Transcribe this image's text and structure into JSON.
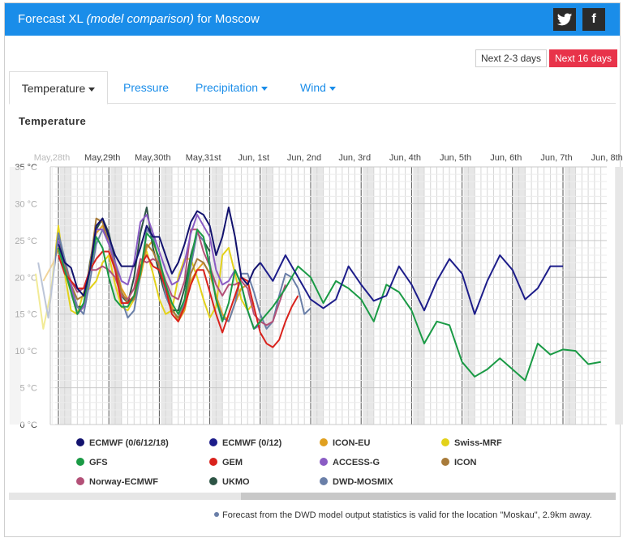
{
  "header": {
    "title_main": "Forecast XL",
    "title_em": "(model comparison)",
    "title_tail": "for Moscow",
    "twitter_glyph": "🐦",
    "facebook_glyph": "f",
    "bg_color": "#1a8de9"
  },
  "range_buttons": [
    {
      "label": "Next 2-3 days",
      "active": false
    },
    {
      "label": "Next 16 days",
      "active": true,
      "color": "#e8334a"
    }
  ],
  "tabs": [
    {
      "label": "Temperature",
      "active": true,
      "dropdown": true
    },
    {
      "label": "Pressure",
      "active": false,
      "dropdown": false
    },
    {
      "label": "Precipitation",
      "active": false,
      "dropdown": true
    },
    {
      "label": "Wind",
      "active": false,
      "dropdown": true
    }
  ],
  "section_title": "Temperature",
  "chart_data": {
    "type": "line",
    "title": "Temperature",
    "y_ticks": [
      "0 °C",
      "5 °C",
      "10 °C",
      "15 °C",
      "20 °C",
      "25 °C",
      "30 °C",
      "35 °C"
    ],
    "ylim": [
      0,
      35
    ],
    "x_day_labels": [
      "May,28th",
      "May,29th",
      "May,30th",
      "May,31st",
      "Jun, 1st",
      "Jun, 2nd",
      "Jun, 3rd",
      "Jun, 4th",
      "Jun, 5th",
      "Jun, 6th",
      "Jun, 7th",
      "Jun, 8th"
    ],
    "grid": true,
    "series": [
      {
        "name": "ECMWF (0/6/12/18)",
        "color": "#12126e",
        "x": [
          0.0,
          0.125,
          0.25,
          0.375,
          0.5,
          0.625,
          0.75,
          0.875,
          1.0,
          1.125,
          1.25,
          1.375,
          1.5,
          1.625,
          1.75,
          1.875,
          2.0,
          2.125,
          2.25,
          2.375,
          2.5,
          2.625,
          2.75,
          2.875,
          3.0,
          3.125,
          3.25,
          3.375,
          3.5,
          3.625,
          3.75,
          3.875,
          4.0
        ],
        "y": [
          24.5,
          22.0,
          21.3,
          18.5,
          17.5,
          21.0,
          27.0,
          28.0,
          25.5,
          23.0,
          21.5,
          21.5,
          21.5,
          24.0,
          27.0,
          25.5,
          25.5,
          23.0,
          20.5,
          22.0,
          24.5,
          27.5,
          29.0,
          28.5,
          27.0,
          23.0,
          25.5,
          29.5,
          25.5,
          20.0,
          19.0,
          21.0,
          22.0
        ]
      },
      {
        "name": "ECMWF (0/12)",
        "color": "#1d1d8a",
        "x": [
          4.0,
          4.25,
          4.5,
          4.75,
          5.0,
          5.25,
          5.5,
          5.75,
          6.0,
          6.25,
          6.5,
          6.75,
          7.0,
          7.25,
          7.5,
          7.75,
          8.0,
          8.25,
          8.5,
          8.75,
          9.0,
          9.25,
          9.5,
          9.75,
          10.0
        ],
        "y": [
          22.0,
          19.5,
          23.0,
          20.0,
          17.0,
          15.8,
          17.0,
          21.5,
          19.0,
          16.8,
          17.5,
          21.5,
          19.0,
          15.5,
          19.5,
          22.5,
          20.5,
          15.0,
          19.5,
          23.0,
          21.0,
          17.0,
          18.5,
          21.5,
          21.5
        ]
      },
      {
        "name": "ICON-EU",
        "color": "#e0a020",
        "x": [
          -0.3,
          -0.1,
          0.0,
          0.125,
          0.25,
          0.375,
          0.5,
          0.625,
          0.75,
          0.875,
          1.0,
          1.125,
          1.25,
          1.375,
          1.5,
          1.625,
          1.75,
          1.875,
          2.0,
          2.125,
          2.25,
          2.375,
          2.5,
          2.625,
          2.75,
          2.875,
          3.0,
          3.125,
          3.25,
          3.375,
          3.5,
          3.625,
          3.75
        ],
        "y": [
          19.5,
          22.0,
          24.0,
          21.0,
          18.0,
          15.0,
          16.0,
          21.0,
          26.0,
          27.0,
          25.0,
          21.5,
          18.5,
          17.0,
          17.0,
          20.0,
          24.0,
          25.0,
          22.0,
          18.5,
          16.0,
          14.0,
          15.5,
          19.5,
          21.0,
          22.0,
          20.5,
          17.5,
          15.0,
          14.0,
          16.5,
          18.5,
          19.0
        ]
      },
      {
        "name": "Swiss-MRF",
        "color": "#e3d21a",
        "x": [
          -0.45,
          -0.3,
          -0.15,
          0.0,
          0.125,
          0.25,
          0.375,
          0.5,
          0.625,
          0.75,
          0.875,
          1.0,
          1.125,
          1.25,
          1.375,
          1.5,
          1.625,
          1.75,
          1.875,
          2.0,
          2.125,
          2.25,
          2.375,
          2.5,
          2.625,
          2.75,
          2.875,
          3.0,
          3.125,
          3.25,
          3.375,
          3.5,
          3.625,
          3.75,
          3.875
        ],
        "y": [
          20.5,
          13.0,
          18.0,
          27.0,
          20.5,
          15.5,
          15.0,
          18.0,
          18.5,
          19.5,
          22.0,
          23.0,
          19.0,
          16.0,
          15.5,
          17.0,
          22.0,
          23.5,
          20.5,
          17.0,
          15.0,
          15.5,
          20.0,
          22.5,
          22.5,
          20.0,
          17.0,
          14.5,
          16.0,
          23.0,
          24.0,
          20.5,
          17.0,
          15.5,
          16.5
        ]
      },
      {
        "name": "GFS",
        "color": "#1a9a45",
        "x": [
          0.0,
          0.125,
          0.25,
          0.375,
          0.5,
          0.625,
          0.75,
          0.875,
          1.0,
          1.125,
          1.25,
          1.375,
          1.5,
          1.625,
          1.75,
          1.875,
          2.0,
          2.125,
          2.25,
          2.375,
          2.5,
          2.625,
          2.75,
          2.875,
          3.0,
          3.125,
          3.25,
          3.375,
          3.5,
          3.625,
          3.75,
          3.875,
          4.0,
          4.25,
          4.5,
          4.75,
          5.0,
          5.25,
          5.5,
          5.75,
          6.0,
          6.25,
          6.5,
          6.75,
          7.0,
          7.25,
          7.5,
          7.75,
          8.0,
          8.25,
          8.5,
          8.75,
          9.0,
          9.25,
          9.5,
          9.75,
          10.0,
          10.25,
          10.5,
          10.75
        ],
        "y": [
          24.0,
          21.0,
          18.0,
          15.0,
          16.5,
          21.0,
          25.5,
          24.0,
          20.0,
          17.0,
          16.0,
          16.0,
          17.5,
          20.5,
          26.0,
          25.0,
          22.5,
          19.0,
          16.5,
          15.0,
          17.0,
          22.5,
          26.5,
          25.5,
          21.5,
          17.0,
          14.0,
          16.5,
          21.0,
          19.0,
          15.5,
          13.0,
          14.0,
          16.0,
          18.5,
          21.5,
          20.0,
          16.5,
          19.5,
          18.5,
          17.0,
          14.0,
          19.0,
          18.0,
          15.5,
          11.0,
          14.0,
          13.5,
          8.5,
          6.5,
          7.5,
          9.0,
          7.5,
          6.0,
          11.0,
          9.5,
          10.2,
          10.0,
          8.2,
          8.5
        ]
      },
      {
        "name": "GEM",
        "color": "#d9221c",
        "x": [
          0.0,
          0.125,
          0.25,
          0.375,
          0.5,
          0.625,
          0.75,
          0.875,
          1.0,
          1.125,
          1.25,
          1.375,
          1.5,
          1.625,
          1.75,
          1.875,
          2.0,
          2.125,
          2.25,
          2.375,
          2.5,
          2.625,
          2.75,
          2.875,
          3.0,
          3.125,
          3.25,
          3.375,
          3.5,
          3.625,
          3.75,
          3.875,
          4.0,
          4.125,
          4.25,
          4.375,
          4.5,
          4.625,
          4.75
        ],
        "y": [
          23.0,
          20.5,
          19.5,
          18.5,
          18.5,
          21.0,
          22.5,
          23.5,
          23.5,
          21.0,
          16.5,
          16.5,
          17.5,
          21.5,
          23.0,
          21.5,
          21.0,
          18.5,
          15.0,
          14.0,
          16.0,
          19.0,
          21.0,
          21.0,
          18.0,
          15.0,
          12.5,
          15.0,
          17.5,
          20.0,
          19.5,
          16.0,
          12.5,
          11.0,
          10.5,
          11.5,
          14.0,
          16.0,
          17.5
        ]
      },
      {
        "name": "ACCESS-G",
        "color": "#8a5cc4",
        "x": [
          0.0,
          0.125,
          0.25,
          0.375,
          0.5,
          0.625,
          0.75,
          0.875,
          1.0,
          1.125,
          1.25,
          1.375,
          1.5,
          1.625,
          1.75,
          1.875,
          2.0,
          2.125,
          2.25,
          2.375,
          2.5,
          2.625,
          2.75,
          2.875,
          3.0,
          3.125,
          3.25,
          3.375,
          3.5,
          3.625,
          3.75,
          3.875,
          4.0
        ],
        "y": [
          25.0,
          21.0,
          19.0,
          15.0,
          16.0,
          21.0,
          26.5,
          26.5,
          24.5,
          22.0,
          19.5,
          19.0,
          22.0,
          27.5,
          28.5,
          26.0,
          23.5,
          21.0,
          19.0,
          19.5,
          22.0,
          26.0,
          28.5,
          27.0,
          25.5,
          21.0,
          19.0,
          19.5,
          21.0,
          19.0,
          15.5,
          13.0,
          13.5
        ]
      },
      {
        "name": "ICON",
        "color": "#a87b3a",
        "x": [
          0.0,
          0.125,
          0.25,
          0.375,
          0.5,
          0.625,
          0.75,
          0.875,
          1.0,
          1.125,
          1.25,
          1.375,
          1.5,
          1.625,
          1.75,
          1.875,
          2.0,
          2.125,
          2.25,
          2.375,
          2.5,
          2.625,
          2.75,
          2.875,
          3.0
        ],
        "y": [
          23.5,
          21.5,
          19.0,
          17.0,
          17.5,
          21.5,
          28.0,
          27.5,
          24.5,
          21.5,
          18.0,
          16.5,
          17.0,
          21.0,
          24.5,
          23.5,
          21.5,
          18.5,
          15.5,
          14.5,
          16.0,
          20.5,
          22.5,
          22.0,
          20.5
        ]
      },
      {
        "name": "Norway-ECMWF",
        "color": "#b35077",
        "x": [
          0.0,
          0.125,
          0.25,
          0.375,
          0.5,
          0.625,
          0.75,
          0.875,
          1.0,
          1.125,
          1.25,
          1.375,
          1.5,
          1.625,
          1.75,
          1.875,
          2.0,
          2.125,
          2.25,
          2.375,
          2.5,
          2.625,
          2.75,
          2.875,
          3.0,
          3.125,
          3.25,
          3.375,
          3.5,
          3.625,
          3.75,
          3.875,
          4.0,
          4.125,
          4.25,
          4.375,
          4.5
        ],
        "y": [
          24.0,
          21.5,
          19.5,
          18.0,
          18.5,
          21.0,
          21.0,
          21.5,
          21.0,
          20.0,
          17.5,
          17.0,
          18.5,
          22.5,
          22.0,
          22.5,
          22.0,
          19.5,
          17.5,
          17.0,
          19.5,
          26.5,
          26.5,
          23.5,
          21.5,
          19.0,
          17.5,
          19.0,
          19.0,
          19.5,
          18.5,
          15.0,
          14.0,
          13.5,
          14.0,
          16.5,
          19.0
        ]
      },
      {
        "name": "UKMO",
        "color": "#2d5445",
        "x": [
          0.0,
          0.125,
          0.25,
          0.375,
          0.5,
          0.625,
          0.75,
          0.875,
          1.0,
          1.125,
          1.25,
          1.375,
          1.5,
          1.625,
          1.75,
          1.875,
          2.0,
          2.125,
          2.25,
          2.375,
          2.5,
          2.625,
          2.75,
          2.875,
          3.0
        ],
        "y": [
          26.0,
          22.0,
          18.5,
          16.0,
          16.0,
          22.0,
          26.5,
          28.0,
          26.0,
          22.0,
          17.5,
          16.5,
          20.0,
          26.0,
          29.5,
          24.0,
          20.5,
          17.5,
          15.5,
          15.5,
          18.5,
          23.0,
          26.0,
          25.0,
          23.5
        ]
      },
      {
        "name": "DWD-MOSMIX",
        "color": "#6a7fa8",
        "x": [
          -0.4,
          -0.2,
          0.0,
          0.125,
          0.25,
          0.375,
          0.5,
          0.625,
          0.75,
          0.875,
          1.0,
          1.125,
          1.25,
          1.375,
          1.5,
          1.625,
          1.75,
          1.875,
          2.0,
          2.125,
          2.25,
          2.375,
          2.5,
          2.625,
          2.75,
          2.875,
          3.0,
          3.125,
          3.25,
          3.375,
          3.5,
          3.625,
          3.75,
          3.875,
          4.0,
          4.125,
          4.25,
          4.375,
          4.5,
          4.625,
          4.75,
          4.875,
          5.0
        ],
        "y": [
          22.0,
          14.5,
          26.0,
          22.5,
          19.0,
          16.0,
          15.0,
          19.5,
          24.5,
          26.5,
          25.5,
          21.0,
          17.0,
          14.5,
          15.5,
          20.5,
          26.5,
          25.5,
          22.0,
          17.5,
          15.5,
          14.5,
          16.5,
          21.5,
          26.0,
          25.0,
          22.0,
          17.0,
          14.5,
          14.0,
          16.5,
          20.5,
          20.5,
          18.0,
          15.0,
          13.0,
          14.0,
          17.5,
          20.5,
          20.0,
          18.5,
          15.0,
          15.8
        ]
      }
    ]
  },
  "legend": [
    {
      "label": "ECMWF (0/6/12/18)",
      "color": "#12126e"
    },
    {
      "label": "ECMWF (0/12)",
      "color": "#1d1d8a"
    },
    {
      "label": "ICON-EU",
      "color": "#e0a020"
    },
    {
      "label": "Swiss-MRF",
      "color": "#e3d21a"
    },
    {
      "label": "GFS",
      "color": "#1a9a45"
    },
    {
      "label": "GEM",
      "color": "#d9221c"
    },
    {
      "label": "ACCESS-G",
      "color": "#8a5cc4"
    },
    {
      "label": "ICON",
      "color": "#a87b3a"
    },
    {
      "label": "Norway-ECMWF",
      "color": "#b35077"
    },
    {
      "label": "UKMO",
      "color": "#2d5445"
    },
    {
      "label": "DWD-MOSMIX",
      "color": "#6a7fa8"
    }
  ],
  "footnote": "Forecast from the DWD model output statistics is valid for the location \"Moskau\", 2.9km away."
}
